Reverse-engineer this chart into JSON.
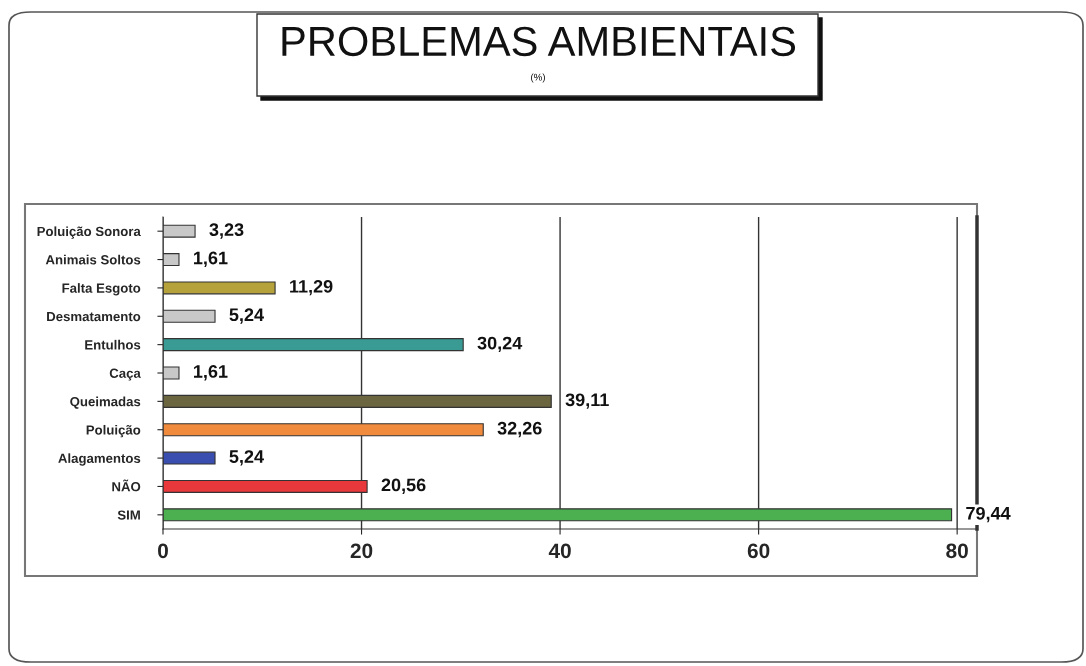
{
  "chart_data": {
    "type": "bar",
    "orientation": "horizontal",
    "title": "PROBLEMAS AMBIENTAIS",
    "subtitle": "(%)",
    "categories": [
      "Poluição Sonora",
      "Animais Soltos",
      "Falta Esgoto",
      "Desmatamento",
      "Entulhos",
      "Caça",
      "Queimadas",
      "Poluição",
      "Alagamentos",
      "NÃO",
      "SIM"
    ],
    "values": [
      3.23,
      1.61,
      11.29,
      5.24,
      30.24,
      1.61,
      39.11,
      32.26,
      5.24,
      20.56,
      79.44
    ],
    "value_labels": [
      "3,23",
      "1,61",
      "11,29",
      "5,24",
      "30,24",
      "1,61",
      "39,11",
      "32,26",
      "5,24",
      "20,56",
      "79,44"
    ],
    "colors": [
      "#c8c8c8",
      "#c8c8c8",
      "#b5a23a",
      "#c8c8c8",
      "#3a9a94",
      "#c8c8c8",
      "#6b6540",
      "#f08a3c",
      "#3a4eb0",
      "#e8383c",
      "#4caf50"
    ],
    "xlim": [
      0,
      82
    ],
    "xticks": [
      0,
      20,
      40,
      60,
      80
    ],
    "grid": "x"
  }
}
